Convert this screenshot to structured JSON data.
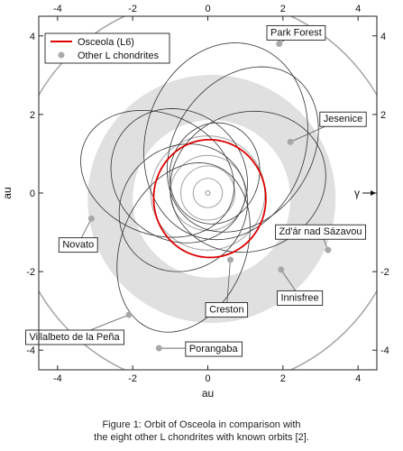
{
  "caption": {
    "line1": "Figure 1: Orbit of Osceola in comparison with",
    "line2": "the eight other L chondrites with known orbits [2]."
  },
  "chart_data": {
    "type": "orbit-diagram",
    "xlabel": "au",
    "ylabel": "au",
    "xlim": [
      -4.5,
      4.5
    ],
    "ylim": [
      -4.5,
      4.5
    ],
    "xticks": [
      -4,
      -2,
      0,
      2,
      4
    ],
    "yticks": [
      -4,
      -2,
      0,
      2,
      4
    ],
    "tick_labels": [
      "-4",
      "-2",
      "0",
      "2",
      "4"
    ],
    "vernal_equinox_symbol": "γ",
    "legend": {
      "position": "top-left",
      "entries": [
        {
          "label": "Osceola (L6)",
          "marker": "line",
          "color": "#dd0000"
        },
        {
          "label": "Other L chondrites",
          "marker": "dot",
          "color": "#aaaaaa"
        }
      ]
    },
    "asteroid_belt": {
      "inner_au": 2.1,
      "outer_au": 3.3,
      "color": "#e0e0e0",
      "offset_x": 0.1,
      "offset_y": -0.15
    },
    "planet_orbits_au": [
      0.39,
      0.72,
      1.0,
      1.52,
      5.2
    ],
    "osceola_orbit": {
      "a": 1.5,
      "e": 0.1,
      "omega_deg": 110,
      "color": "#dd0000"
    },
    "meteorites": [
      {
        "name": "Park Forest",
        "a": 2.25,
        "e": 0.68,
        "omega_deg": 65,
        "fall_position": [
          1.9,
          3.8
        ],
        "label_at": [
          2.35,
          4.1
        ]
      },
      {
        "name": "Jesenice",
        "a": 1.75,
        "e": 0.43,
        "omega_deg": 30,
        "fall_position": [
          2.2,
          1.3
        ],
        "label_at": [
          3.6,
          1.9
        ]
      },
      {
        "name": "Novato",
        "a": 2.09,
        "e": 0.53,
        "omega_deg": 195,
        "fall_position": [
          -3.1,
          -0.65
        ],
        "label_at": [
          -3.45,
          -1.3
        ]
      },
      {
        "name": "Zd'ár nad Sázavou",
        "a": 2.1,
        "e": 0.68,
        "omega_deg": 340,
        "fall_position": [
          3.2,
          -1.45
        ],
        "label_at": [
          3.0,
          -0.97
        ]
      },
      {
        "name": "Innisfree",
        "a": 1.87,
        "e": 0.47,
        "omega_deg": 330,
        "fall_position": [
          1.95,
          -1.95
        ],
        "label_at": [
          2.45,
          -2.65
        ]
      },
      {
        "name": "Creston",
        "a": 1.3,
        "e": 0.41,
        "omega_deg": 250,
        "fall_position": [
          0.6,
          -1.7
        ],
        "label_at": [
          0.5,
          -2.95
        ]
      },
      {
        "name": "Villalbeto de la Peña",
        "a": 2.3,
        "e": 0.63,
        "omega_deg": 230,
        "fall_position": [
          -2.1,
          -3.1
        ],
        "label_at": [
          -3.55,
          -3.65
        ]
      },
      {
        "name": "Porangaba",
        "a": 2.55,
        "e": 0.55,
        "omega_deg": 250,
        "fall_position": [
          -1.3,
          -3.95
        ],
        "label_at": [
          0.15,
          -3.95
        ]
      }
    ]
  }
}
